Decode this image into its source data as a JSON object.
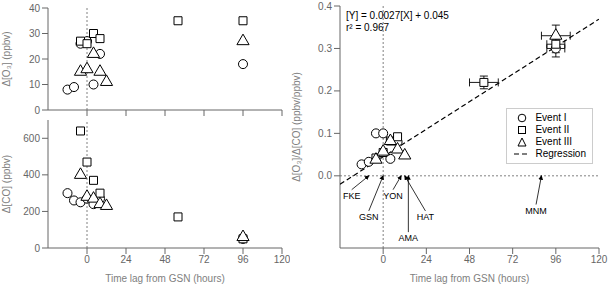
{
  "chart_data": [
    {
      "type": "scatter",
      "ylabel": "Δ[O₃] (ppbv)",
      "xlim": [
        -24,
        120
      ],
      "xticks": [
        0,
        24,
        48,
        72,
        96,
        120
      ],
      "ylim": [
        0,
        40
      ],
      "yticks": [
        0,
        10,
        20,
        30,
        40
      ],
      "tick_labels": "y",
      "vline": 0,
      "series": [
        {
          "marker": "circle",
          "color": "black",
          "x": [
            -12,
            -8,
            -4,
            0,
            4,
            8,
            96
          ],
          "values": [
            8,
            9,
            26,
            27,
            10,
            22,
            18
          ]
        },
        {
          "marker": "square",
          "color": "black",
          "x": [
            -4,
            0,
            4,
            8,
            56,
            96
          ],
          "values": [
            27,
            26,
            30,
            28,
            35,
            35
          ]
        },
        {
          "marker": "triangle",
          "color": "black",
          "x": [
            -4,
            0,
            4,
            8,
            12,
            96
          ],
          "values": [
            15,
            16,
            22,
            15,
            11,
            27
          ]
        }
      ]
    },
    {
      "type": "scatter",
      "xlabel": "Time lag from GSN (hours)",
      "ylabel": "Δ[CO] (ppbv)",
      "xlim": [
        -24,
        120
      ],
      "xticks": [
        0,
        24,
        48,
        72,
        96,
        120
      ],
      "ylim": [
        0,
        700
      ],
      "yticks": [
        0,
        200,
        400,
        600
      ],
      "vline": 0,
      "series": [
        {
          "marker": "circle",
          "color": "black",
          "x": [
            -12,
            -8,
            -4,
            0,
            4,
            8,
            96
          ],
          "values": [
            300,
            260,
            250,
            270,
            240,
            270,
            50
          ]
        },
        {
          "marker": "square",
          "color": "black",
          "x": [
            -4,
            0,
            4,
            8,
            56,
            96
          ],
          "values": [
            640,
            470,
            370,
            300,
            170,
            50
          ]
        },
        {
          "marker": "triangle",
          "color": "black",
          "x": [
            -4,
            0,
            4,
            8,
            12,
            96
          ],
          "values": [
            400,
            280,
            270,
            240,
            230,
            60
          ]
        }
      ]
    },
    {
      "type": "scatter",
      "xlabel": "Time lag from GSN (hours)",
      "ylabel": "Δ[O₃]/Δ[CO] (ppbv/ppbv)",
      "xlim": [
        -24,
        120
      ],
      "xticks": [
        0,
        24,
        48,
        72,
        96,
        120
      ],
      "ylim": [
        -0.17,
        0.4
      ],
      "yticks": [
        {
          "value": 0,
          "label": "0.0"
        },
        0.1,
        0.2,
        0.3,
        0.4
      ],
      "vline": 0,
      "hline": 0,
      "legend": "right",
      "series": [
        {
          "name": "Event I",
          "marker": "circle",
          "color": "black",
          "x": [
            -12,
            -8,
            -4,
            0,
            4,
            8,
            96
          ],
          "values": [
            0.027,
            0.033,
            0.1,
            0.1,
            0.04,
            0.08,
            0.3
          ],
          "xerr": [
            0,
            0,
            0,
            0,
            0,
            0,
            5
          ],
          "yerr": [
            0,
            0,
            0,
            0,
            0,
            0,
            0.02
          ]
        },
        {
          "name": "Event II",
          "marker": "square",
          "color": "black",
          "x": [
            -4,
            0,
            4,
            8,
            56,
            96
          ],
          "values": [
            0.042,
            0.055,
            0.082,
            0.092,
            0.22,
            0.31
          ],
          "xerr": [
            0,
            0,
            0,
            0,
            8,
            5
          ],
          "yerr": [
            0,
            0,
            0,
            0,
            0.015,
            0.02
          ]
        },
        {
          "name": "Event III",
          "marker": "triangle",
          "color": "black",
          "x": [
            -4,
            0,
            4,
            8,
            12,
            96
          ],
          "values": [
            0.038,
            0.057,
            0.082,
            0.062,
            0.048,
            0.33
          ],
          "xerr": [
            0,
            0,
            0,
            0,
            0,
            8
          ],
          "yerr": [
            0,
            0,
            0,
            0,
            0,
            0.025
          ]
        },
        {
          "name": "Regression",
          "type": "line",
          "line_style": "dashed",
          "color": "black",
          "x": [
            -24,
            120
          ],
          "values": [
            -0.0198,
            0.369
          ]
        }
      ],
      "annotations": [
        {
          "text": "[Y] = 0.0027[X] + 0.045\nr² = 0.967"
        },
        {
          "text": "GSN",
          "x": 0,
          "y": 0
        },
        {
          "text": "FKE",
          "x": -8,
          "y": 0
        },
        {
          "text": "YON",
          "x": 10,
          "y": 0
        },
        {
          "text": "HAT",
          "x": 12,
          "y": 0
        },
        {
          "text": "AMA",
          "x": 14,
          "y": 0
        },
        {
          "text": "MNM",
          "x": 88,
          "y": 0
        }
      ]
    }
  ]
}
